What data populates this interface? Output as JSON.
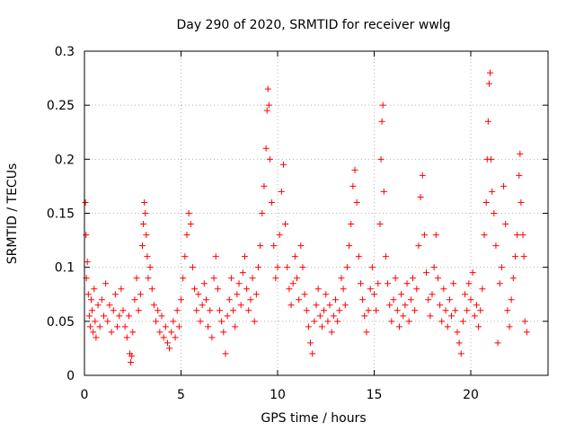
{
  "chart_data": {
    "type": "scatter",
    "title": "Day 290 of 2020, SRMTID for receiver wwlg",
    "xlabel": "GPS time / hours",
    "ylabel": "SRMTID / TECUs",
    "xlim": [
      0,
      24
    ],
    "ylim": [
      0,
      0.3
    ],
    "xticks": [
      0,
      5,
      10,
      15,
      20
    ],
    "yticks": [
      0,
      0.05,
      0.1,
      0.15,
      0.2,
      0.25,
      0.3
    ],
    "xtick_labels": [
      "0",
      "5",
      "10",
      "15",
      "20"
    ],
    "ytick_labels": [
      "0",
      "0.05",
      "0.1",
      "0.15",
      "0.2",
      "0.25",
      "0.3"
    ],
    "grid": true,
    "marker": "+",
    "color": "#ff0000",
    "series": [
      {
        "name": "SRMTID",
        "points": [
          [
            0.05,
            0.16
          ],
          [
            0.08,
            0.13
          ],
          [
            0.1,
            0.09
          ],
          [
            0.15,
            0.105
          ],
          [
            0.2,
            0.075
          ],
          [
            0.25,
            0.055
          ],
          [
            0.3,
            0.045
          ],
          [
            0.35,
            0.07
          ],
          [
            0.4,
            0.06
          ],
          [
            0.45,
            0.04
          ],
          [
            0.5,
            0.08
          ],
          [
            0.55,
            0.05
          ],
          [
            0.6,
            0.035
          ],
          [
            0.7,
            0.065
          ],
          [
            0.8,
            0.045
          ],
          [
            0.9,
            0.07
          ],
          [
            1.0,
            0.055
          ],
          [
            1.1,
            0.085
          ],
          [
            1.2,
            0.05
          ],
          [
            1.3,
            0.065
          ],
          [
            1.4,
            0.04
          ],
          [
            1.5,
            0.06
          ],
          [
            1.6,
            0.075
          ],
          [
            1.7,
            0.045
          ],
          [
            1.8,
            0.055
          ],
          [
            1.9,
            0.08
          ],
          [
            2.0,
            0.06
          ],
          [
            2.1,
            0.045
          ],
          [
            2.2,
            0.035
          ],
          [
            2.3,
            0.055
          ],
          [
            2.35,
            0.02
          ],
          [
            2.4,
            0.012
          ],
          [
            2.45,
            0.018
          ],
          [
            2.5,
            0.04
          ],
          [
            2.6,
            0.07
          ],
          [
            2.7,
            0.09
          ],
          [
            2.8,
            0.06
          ],
          [
            2.9,
            0.075
          ],
          [
            3.0,
            0.12
          ],
          [
            3.05,
            0.14
          ],
          [
            3.1,
            0.16
          ],
          [
            3.15,
            0.15
          ],
          [
            3.2,
            0.13
          ],
          [
            3.25,
            0.11
          ],
          [
            3.3,
            0.09
          ],
          [
            3.4,
            0.1
          ],
          [
            3.5,
            0.08
          ],
          [
            3.6,
            0.065
          ],
          [
            3.7,
            0.05
          ],
          [
            3.8,
            0.06
          ],
          [
            3.9,
            0.04
          ],
          [
            4.0,
            0.055
          ],
          [
            4.1,
            0.035
          ],
          [
            4.2,
            0.045
          ],
          [
            4.3,
            0.03
          ],
          [
            4.4,
            0.025
          ],
          [
            4.5,
            0.04
          ],
          [
            4.6,
            0.05
          ],
          [
            4.7,
            0.035
          ],
          [
            4.8,
            0.06
          ],
          [
            4.9,
            0.045
          ],
          [
            5.0,
            0.07
          ],
          [
            5.1,
            0.09
          ],
          [
            5.2,
            0.11
          ],
          [
            5.3,
            0.13
          ],
          [
            5.4,
            0.15
          ],
          [
            5.5,
            0.14
          ],
          [
            5.6,
            0.1
          ],
          [
            5.7,
            0.08
          ],
          [
            5.8,
            0.06
          ],
          [
            5.9,
            0.075
          ],
          [
            6.0,
            0.05
          ],
          [
            6.1,
            0.065
          ],
          [
            6.2,
            0.085
          ],
          [
            6.3,
            0.07
          ],
          [
            6.4,
            0.045
          ],
          [
            6.5,
            0.06
          ],
          [
            6.6,
            0.035
          ],
          [
            6.7,
            0.09
          ],
          [
            6.8,
            0.11
          ],
          [
            6.9,
            0.08
          ],
          [
            7.0,
            0.06
          ],
          [
            7.1,
            0.05
          ],
          [
            7.2,
            0.04
          ],
          [
            7.3,
            0.02
          ],
          [
            7.4,
            0.055
          ],
          [
            7.5,
            0.07
          ],
          [
            7.6,
            0.09
          ],
          [
            7.7,
            0.06
          ],
          [
            7.8,
            0.045
          ],
          [
            7.9,
            0.075
          ],
          [
            8.0,
            0.085
          ],
          [
            8.1,
            0.065
          ],
          [
            8.2,
            0.095
          ],
          [
            8.3,
            0.11
          ],
          [
            8.4,
            0.08
          ],
          [
            8.5,
            0.06
          ],
          [
            8.6,
            0.07
          ],
          [
            8.7,
            0.09
          ],
          [
            8.8,
            0.05
          ],
          [
            8.9,
            0.075
          ],
          [
            9.0,
            0.1
          ],
          [
            9.1,
            0.12
          ],
          [
            9.2,
            0.15
          ],
          [
            9.3,
            0.175
          ],
          [
            9.4,
            0.21
          ],
          [
            9.45,
            0.245
          ],
          [
            9.5,
            0.265
          ],
          [
            9.55,
            0.25
          ],
          [
            9.6,
            0.2
          ],
          [
            9.7,
            0.16
          ],
          [
            9.8,
            0.12
          ],
          [
            9.9,
            0.09
          ],
          [
            10.0,
            0.1
          ],
          [
            10.1,
            0.13
          ],
          [
            10.2,
            0.17
          ],
          [
            10.3,
            0.195
          ],
          [
            10.4,
            0.14
          ],
          [
            10.5,
            0.1
          ],
          [
            10.6,
            0.08
          ],
          [
            10.7,
            0.065
          ],
          [
            10.8,
            0.085
          ],
          [
            10.9,
            0.11
          ],
          [
            11.0,
            0.09
          ],
          [
            11.1,
            0.07
          ],
          [
            11.2,
            0.12
          ],
          [
            11.3,
            0.1
          ],
          [
            11.4,
            0.075
          ],
          [
            11.5,
            0.06
          ],
          [
            11.6,
            0.045
          ],
          [
            11.7,
            0.03
          ],
          [
            11.8,
            0.02
          ],
          [
            11.9,
            0.05
          ],
          [
            12.0,
            0.065
          ],
          [
            12.1,
            0.08
          ],
          [
            12.2,
            0.055
          ],
          [
            12.3,
            0.045
          ],
          [
            12.4,
            0.06
          ],
          [
            12.5,
            0.075
          ],
          [
            12.6,
            0.05
          ],
          [
            12.7,
            0.065
          ],
          [
            12.8,
            0.04
          ],
          [
            12.9,
            0.055
          ],
          [
            13.0,
            0.07
          ],
          [
            13.1,
            0.05
          ],
          [
            13.2,
            0.06
          ],
          [
            13.3,
            0.09
          ],
          [
            13.4,
            0.08
          ],
          [
            13.5,
            0.065
          ],
          [
            13.6,
            0.1
          ],
          [
            13.7,
            0.12
          ],
          [
            13.8,
            0.14
          ],
          [
            13.9,
            0.175
          ],
          [
            14.0,
            0.19
          ],
          [
            14.1,
            0.16
          ],
          [
            14.2,
            0.11
          ],
          [
            14.3,
            0.085
          ],
          [
            14.4,
            0.07
          ],
          [
            14.5,
            0.055
          ],
          [
            14.6,
            0.04
          ],
          [
            14.7,
            0.06
          ],
          [
            14.8,
            0.08
          ],
          [
            14.9,
            0.1
          ],
          [
            15.0,
            0.075
          ],
          [
            15.1,
            0.06
          ],
          [
            15.2,
            0.085
          ],
          [
            15.3,
            0.14
          ],
          [
            15.35,
            0.2
          ],
          [
            15.4,
            0.235
          ],
          [
            15.45,
            0.25
          ],
          [
            15.5,
            0.17
          ],
          [
            15.6,
            0.11
          ],
          [
            15.7,
            0.085
          ],
          [
            15.8,
            0.065
          ],
          [
            15.9,
            0.05
          ],
          [
            16.0,
            0.07
          ],
          [
            16.1,
            0.09
          ],
          [
            16.2,
            0.06
          ],
          [
            16.3,
            0.045
          ],
          [
            16.4,
            0.075
          ],
          [
            16.5,
            0.055
          ],
          [
            16.6,
            0.065
          ],
          [
            16.7,
            0.085
          ],
          [
            16.8,
            0.05
          ],
          [
            16.9,
            0.07
          ],
          [
            17.0,
            0.09
          ],
          [
            17.1,
            0.06
          ],
          [
            17.2,
            0.08
          ],
          [
            17.3,
            0.12
          ],
          [
            17.4,
            0.165
          ],
          [
            17.5,
            0.185
          ],
          [
            17.6,
            0.13
          ],
          [
            17.7,
            0.095
          ],
          [
            17.8,
            0.07
          ],
          [
            17.9,
            0.055
          ],
          [
            18.0,
            0.075
          ],
          [
            18.1,
            0.1
          ],
          [
            18.2,
            0.13
          ],
          [
            18.3,
            0.09
          ],
          [
            18.4,
            0.065
          ],
          [
            18.5,
            0.05
          ],
          [
            18.6,
            0.08
          ],
          [
            18.7,
            0.06
          ],
          [
            18.8,
            0.045
          ],
          [
            18.9,
            0.07
          ],
          [
            19.0,
            0.055
          ],
          [
            19.1,
            0.085
          ],
          [
            19.2,
            0.06
          ],
          [
            19.3,
            0.04
          ],
          [
            19.4,
            0.03
          ],
          [
            19.5,
            0.02
          ],
          [
            19.6,
            0.05
          ],
          [
            19.7,
            0.075
          ],
          [
            19.8,
            0.06
          ],
          [
            19.9,
            0.085
          ],
          [
            20.0,
            0.07
          ],
          [
            20.1,
            0.095
          ],
          [
            20.2,
            0.055
          ],
          [
            20.3,
            0.065
          ],
          [
            20.4,
            0.045
          ],
          [
            20.5,
            0.06
          ],
          [
            20.6,
            0.08
          ],
          [
            20.7,
            0.13
          ],
          [
            20.8,
            0.16
          ],
          [
            20.85,
            0.2
          ],
          [
            20.9,
            0.235
          ],
          [
            20.95,
            0.27
          ],
          [
            21.0,
            0.28
          ],
          [
            21.05,
            0.2
          ],
          [
            21.1,
            0.17
          ],
          [
            21.2,
            0.15
          ],
          [
            21.3,
            0.12
          ],
          [
            21.4,
            0.03
          ],
          [
            21.5,
            0.085
          ],
          [
            21.6,
            0.1
          ],
          [
            21.7,
            0.175
          ],
          [
            21.8,
            0.14
          ],
          [
            21.9,
            0.06
          ],
          [
            22.0,
            0.045
          ],
          [
            22.1,
            0.07
          ],
          [
            22.2,
            0.09
          ],
          [
            22.3,
            0.11
          ],
          [
            22.4,
            0.13
          ],
          [
            22.5,
            0.185
          ],
          [
            22.55,
            0.205
          ],
          [
            22.6,
            0.16
          ],
          [
            22.7,
            0.13
          ],
          [
            22.75,
            0.11
          ],
          [
            22.8,
            0.05
          ],
          [
            22.9,
            0.04
          ]
        ]
      }
    ]
  }
}
